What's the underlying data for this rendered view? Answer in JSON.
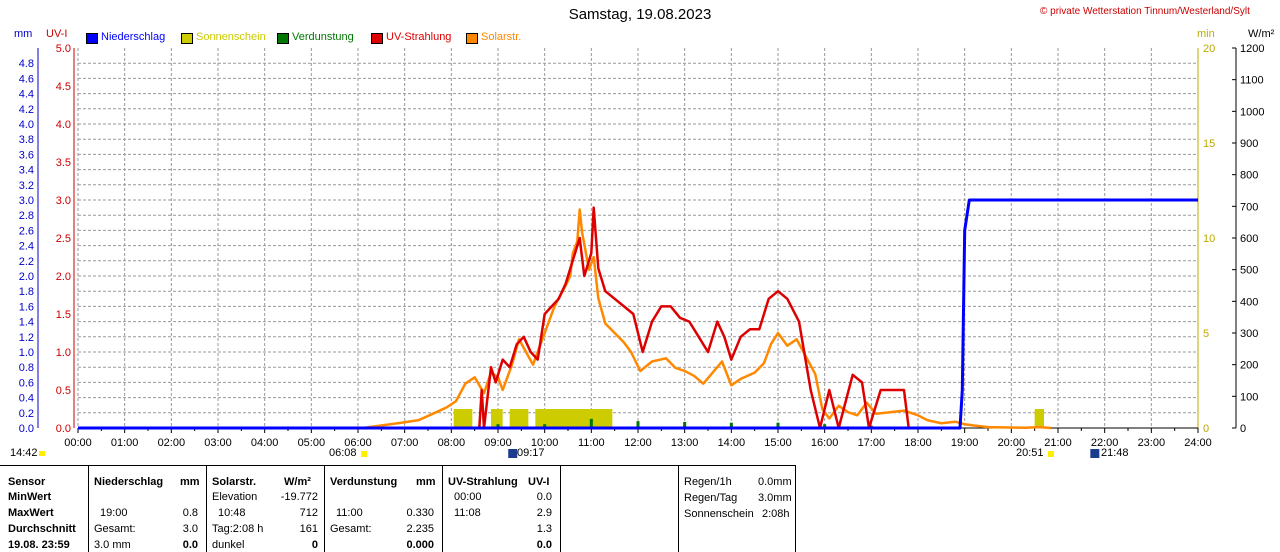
{
  "header": {
    "title": "Samstag, 19.08.2023",
    "credit": "© private Wetterstation Tinnum/Westerland/Sylt",
    "unit_mm": "mm",
    "unit_uv": "UV-I",
    "unit_min": "min",
    "unit_wm2": "W/m²"
  },
  "legend": [
    {
      "label": "Niederschlag",
      "color": "#0000ff"
    },
    {
      "label": "Sonnenschein",
      "color": "#cccc00"
    },
    {
      "label": "Verdunstung",
      "color": "#007700"
    },
    {
      "label": "UV-Strahlung",
      "color": "#dd0000"
    },
    {
      "label": "Solarstr.",
      "color": "#ff8800"
    }
  ],
  "colors": {
    "grid": "#999999",
    "left_axis": "#0000cc",
    "uv_axis": "#cc0000",
    "min_axis": "#bbaa00",
    "wm2_axis": "#000000"
  },
  "chart_data": {
    "type": "line",
    "title": "Samstag, 19.08.2023",
    "x_range": [
      "00:00",
      "24:00"
    ],
    "x_ticks": [
      "00:00",
      "01:00",
      "02:00",
      "03:00",
      "04:00",
      "05:00",
      "06:00",
      "07:00",
      "08:00",
      "09:00",
      "10:00",
      "11:00",
      "12:00",
      "13:00",
      "14:00",
      "15:00",
      "16:00",
      "17:00",
      "18:00",
      "19:00",
      "20:00",
      "21:00",
      "22:00",
      "23:00",
      "24:00"
    ],
    "axes": {
      "mm": {
        "range": [
          0,
          5.0
        ],
        "ticks": [
          "0.0",
          "0.2",
          "0.4",
          "0.6",
          "0.8",
          "1.0",
          "1.2",
          "1.4",
          "1.6",
          "1.8",
          "2.0",
          "2.2",
          "2.4",
          "2.6",
          "2.8",
          "3.0",
          "3.2",
          "3.4",
          "3.6",
          "3.8",
          "4.0",
          "4.2",
          "4.4",
          "4.6",
          "4.8"
        ]
      },
      "uv": {
        "range": [
          0,
          5.0
        ],
        "ticks": [
          "0.0",
          "0.5",
          "1.0",
          "1.5",
          "2.0",
          "2.5",
          "3.0",
          "3.5",
          "4.0",
          "4.5",
          "5.0"
        ]
      },
      "min": {
        "range": [
          0,
          20
        ],
        "ticks": [
          "0",
          "5",
          "10",
          "15",
          "20"
        ]
      },
      "wm2": {
        "range": [
          0,
          1200
        ],
        "ticks": [
          "0",
          "100",
          "200",
          "300",
          "400",
          "500",
          "600",
          "700",
          "800",
          "900",
          "1000",
          "1100",
          "1200"
        ]
      }
    },
    "grid": true,
    "sun_markers": {
      "sunrise": "06:08",
      "solar_noon": "09:17",
      "sunset": "20:51",
      "moon": "21:48",
      "time_left": "14:42"
    },
    "series": [
      {
        "name": "Niederschlag",
        "axis": "mm",
        "points": [
          [
            0,
            0
          ],
          [
            18.9,
            0
          ],
          [
            18.95,
            0.5
          ],
          [
            19.0,
            2.6
          ],
          [
            19.05,
            2.8
          ],
          [
            19.1,
            3.0
          ],
          [
            24,
            3.0
          ]
        ]
      },
      {
        "name": "Solarstr.",
        "axis": "wm2",
        "points": [
          [
            6.1,
            0
          ],
          [
            6.5,
            8
          ],
          [
            7.0,
            18
          ],
          [
            7.3,
            25
          ],
          [
            7.6,
            45
          ],
          [
            7.9,
            65
          ],
          [
            8.1,
            85
          ],
          [
            8.3,
            140
          ],
          [
            8.5,
            160
          ],
          [
            8.7,
            110
          ],
          [
            8.85,
            175
          ],
          [
            9.0,
            160
          ],
          [
            9.1,
            120
          ],
          [
            9.3,
            200
          ],
          [
            9.45,
            280
          ],
          [
            9.6,
            240
          ],
          [
            9.75,
            200
          ],
          [
            9.9,
            260
          ],
          [
            10.0,
            300
          ],
          [
            10.2,
            380
          ],
          [
            10.3,
            410
          ],
          [
            10.45,
            450
          ],
          [
            10.55,
            480
          ],
          [
            10.6,
            550
          ],
          [
            10.7,
            590
          ],
          [
            10.75,
            690
          ],
          [
            10.8,
            620
          ],
          [
            10.95,
            500
          ],
          [
            11.05,
            540
          ],
          [
            11.15,
            410
          ],
          [
            11.3,
            330
          ],
          [
            11.5,
            300
          ],
          [
            11.7,
            270
          ],
          [
            11.85,
            240
          ],
          [
            12.05,
            180
          ],
          [
            12.3,
            210
          ],
          [
            12.6,
            220
          ],
          [
            12.8,
            190
          ],
          [
            13.0,
            180
          ],
          [
            13.2,
            165
          ],
          [
            13.4,
            140
          ],
          [
            13.6,
            175
          ],
          [
            13.8,
            210
          ],
          [
            14.0,
            135
          ],
          [
            14.2,
            155
          ],
          [
            14.5,
            175
          ],
          [
            14.7,
            205
          ],
          [
            14.85,
            265
          ],
          [
            15.0,
            300
          ],
          [
            15.2,
            260
          ],
          [
            15.4,
            280
          ],
          [
            15.6,
            225
          ],
          [
            15.8,
            170
          ],
          [
            15.95,
            60
          ],
          [
            16.1,
            30
          ],
          [
            16.3,
            70
          ],
          [
            16.5,
            50
          ],
          [
            16.7,
            40
          ],
          [
            16.9,
            80
          ],
          [
            17.1,
            45
          ],
          [
            17.4,
            50
          ],
          [
            17.7,
            55
          ],
          [
            18.0,
            40
          ],
          [
            18.2,
            25
          ],
          [
            18.5,
            15
          ],
          [
            18.8,
            20
          ],
          [
            19.0,
            12
          ],
          [
            19.2,
            8
          ],
          [
            19.5,
            3
          ],
          [
            19.8,
            2
          ],
          [
            20.3,
            1
          ],
          [
            20.6,
            3
          ],
          [
            20.85,
            0
          ]
        ]
      },
      {
        "name": "UV-Strahlung",
        "axis": "uv",
        "points": [
          [
            8.5,
            0
          ],
          [
            8.6,
            0
          ],
          [
            8.65,
            0.5
          ],
          [
            8.7,
            0
          ],
          [
            8.85,
            0.8
          ],
          [
            8.95,
            0.6
          ],
          [
            9.1,
            0.9
          ],
          [
            9.25,
            0.8
          ],
          [
            9.4,
            1.1
          ],
          [
            9.55,
            1.2
          ],
          [
            9.7,
            1.0
          ],
          [
            9.85,
            0.9
          ],
          [
            10.0,
            1.5
          ],
          [
            10.15,
            1.6
          ],
          [
            10.3,
            1.7
          ],
          [
            10.45,
            1.9
          ],
          [
            10.6,
            2.2
          ],
          [
            10.75,
            2.5
          ],
          [
            10.85,
            2.0
          ],
          [
            11.0,
            2.3
          ],
          [
            11.05,
            2.9
          ],
          [
            11.15,
            2.1
          ],
          [
            11.3,
            1.8
          ],
          [
            11.5,
            1.7
          ],
          [
            11.7,
            1.6
          ],
          [
            11.9,
            1.5
          ],
          [
            12.1,
            1.0
          ],
          [
            12.3,
            1.4
          ],
          [
            12.5,
            1.6
          ],
          [
            12.7,
            1.6
          ],
          [
            12.9,
            1.45
          ],
          [
            13.1,
            1.4
          ],
          [
            13.3,
            1.2
          ],
          [
            13.5,
            1.0
          ],
          [
            13.7,
            1.4
          ],
          [
            13.85,
            1.2
          ],
          [
            14.0,
            0.9
          ],
          [
            14.2,
            1.2
          ],
          [
            14.4,
            1.3
          ],
          [
            14.6,
            1.3
          ],
          [
            14.8,
            1.7
          ],
          [
            15.0,
            1.8
          ],
          [
            15.2,
            1.7
          ],
          [
            15.45,
            1.4
          ],
          [
            15.7,
            0.5
          ],
          [
            15.9,
            0
          ],
          [
            16.1,
            0.5
          ],
          [
            16.3,
            0
          ],
          [
            16.6,
            0.7
          ],
          [
            16.8,
            0.6
          ],
          [
            16.95,
            0
          ],
          [
            17.2,
            0.5
          ],
          [
            17.45,
            0.5
          ],
          [
            17.7,
            0.5
          ],
          [
            17.8,
            0
          ]
        ]
      },
      {
        "name": "Sonnenschein",
        "axis": "min",
        "type": "bar",
        "bars": [
          [
            8.05,
            8.45,
            1
          ],
          [
            8.85,
            9.1,
            1
          ],
          [
            9.25,
            9.65,
            1
          ],
          [
            9.8,
            11.45,
            1
          ],
          [
            20.5,
            20.7,
            1
          ]
        ]
      },
      {
        "name": "Verdunstung",
        "axis": "mm",
        "type": "bar",
        "bars": [
          [
            9.0,
            0.05
          ],
          [
            10.0,
            0.05
          ],
          [
            11.0,
            0.12
          ],
          [
            12.0,
            0.09
          ],
          [
            13.0,
            0.08
          ],
          [
            14.0,
            0.07
          ],
          [
            15.0,
            0.07
          ],
          [
            16.0,
            0.05
          ],
          [
            17.0,
            0.03
          ],
          [
            18.0,
            0.02
          ]
        ]
      }
    ]
  },
  "table": {
    "col_sensor": {
      "header": "Sensor",
      "rows": [
        "MinWert",
        "MaxWert",
        "Durchschnitt",
        "19.08. 23:59"
      ]
    },
    "col_nieder": {
      "header": "Niederschlag",
      "unit": "mm",
      "r2a": "19:00",
      "r2b": "0.8",
      "r3a": "Gesamt:",
      "r3b": "3.0",
      "r4a": "3.0 mm",
      "r4b": "0.0"
    },
    "col_solar": {
      "header": "Solarstr.",
      "unit": "W/m²",
      "r1a": "Elevation",
      "r1b": "-19.772",
      "r2a": "10:48",
      "r2b": "712",
      "r3a": "Tag:2:08 h",
      "r3b": "161",
      "r4a": "dunkel",
      "r4b": "0"
    },
    "col_verd": {
      "header": "Verdunstung",
      "unit": "mm",
      "r2a": "11:00",
      "r2b": "0.330",
      "r3a": "Gesamt:",
      "r3b": "2.235",
      "r4b": "0.000"
    },
    "col_uv": {
      "header": "UV-Strahlung",
      "unit": "UV-I",
      "r1a": "00:00",
      "r1b": "0.0",
      "r2a": "11:08",
      "r2b": "2.9",
      "r3b": "1.3",
      "r4b": "0.0"
    },
    "summary": [
      {
        "label": "Regen/1h",
        "value": "0.0mm"
      },
      {
        "label": "Regen/Tag",
        "value": "3.0mm"
      },
      {
        "label": "Sonnenschein",
        "value": "2:08h"
      }
    ]
  }
}
